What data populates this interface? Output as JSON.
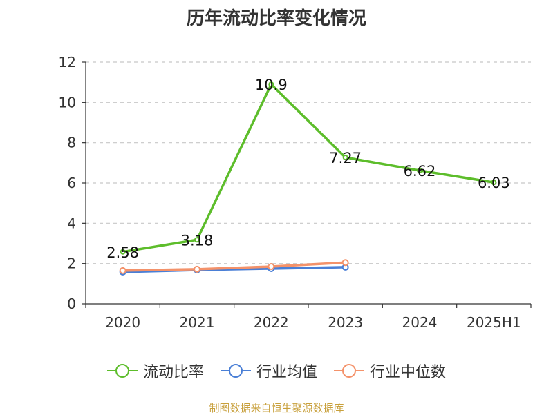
{
  "title": "历年流动比率变化情况",
  "source": "制图数据来自恒生聚源数据库",
  "chart_data": {
    "type": "line",
    "categories": [
      "2020",
      "2021",
      "2022",
      "2023",
      "2024",
      "2025H1"
    ],
    "ylim": [
      0,
      12
    ],
    "yticks": [
      0,
      2,
      4,
      6,
      8,
      10,
      12
    ],
    "grid": true,
    "legend_position": "bottom",
    "series": [
      {
        "name": "流动比率",
        "color": "#5dbd2b",
        "values": [
          2.58,
          3.18,
          10.9,
          7.27,
          6.62,
          6.03
        ],
        "labels": [
          "2.58",
          "3.18",
          "10.9",
          "7.27",
          "6.62",
          "6.03"
        ]
      },
      {
        "name": "行业均值",
        "color": "#4a7fd6",
        "values": [
          1.58,
          1.68,
          1.75,
          1.82,
          null,
          null
        ]
      },
      {
        "name": "行业中位数",
        "color": "#f4926a",
        "values": [
          1.65,
          1.72,
          1.85,
          2.05,
          null,
          null
        ]
      }
    ]
  }
}
